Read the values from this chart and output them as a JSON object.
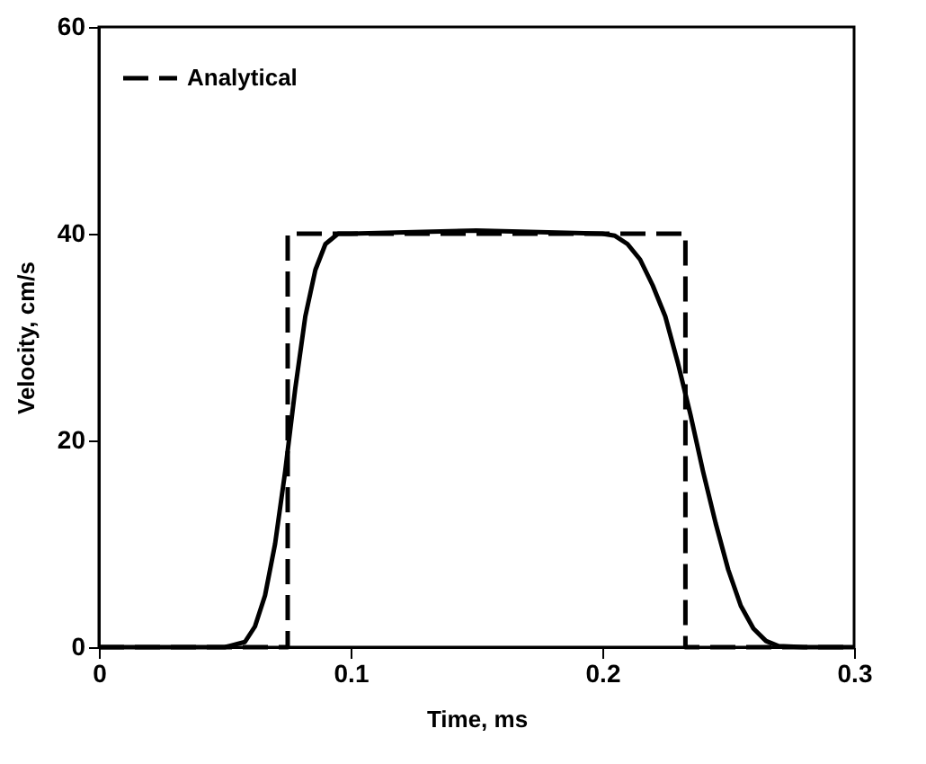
{
  "chart_data": {
    "type": "line",
    "xlabel": "Time, ms",
    "ylabel": "Velocity, cm/s",
    "xlim": [
      0,
      0.3
    ],
    "ylim": [
      0,
      60
    ],
    "xticks": [
      0,
      0.1,
      0.2,
      0.3
    ],
    "yticks": [
      0,
      20,
      40,
      60
    ],
    "grid": false,
    "legend": "top left",
    "marker": "none",
    "series": [
      {
        "name": "Analytical",
        "color": "#000000",
        "line_style": "dashed",
        "x": [
          0,
          0.075,
          0.075,
          0.233,
          0.233,
          0.3
        ],
        "values": [
          0,
          0,
          40,
          40,
          0,
          0
        ]
      },
      {
        "color": "#000000",
        "line_style": "solid",
        "x": [
          0,
          0.05,
          0.058,
          0.062,
          0.066,
          0.07,
          0.074,
          0.078,
          0.082,
          0.086,
          0.09,
          0.095,
          0.1,
          0.15,
          0.2,
          0.205,
          0.21,
          0.215,
          0.22,
          0.225,
          0.23,
          0.235,
          0.24,
          0.245,
          0.25,
          0.255,
          0.26,
          0.265,
          0.27,
          0.28,
          0.3
        ],
        "values": [
          0,
          0,
          0.5,
          2,
          5,
          10,
          17,
          25,
          32,
          36.5,
          39,
          40,
          40,
          40.3,
          40,
          39.8,
          39,
          37.5,
          35,
          32,
          27.5,
          22.5,
          17,
          12,
          7.5,
          4,
          1.8,
          0.6,
          0.1,
          0,
          0
        ]
      }
    ]
  }
}
